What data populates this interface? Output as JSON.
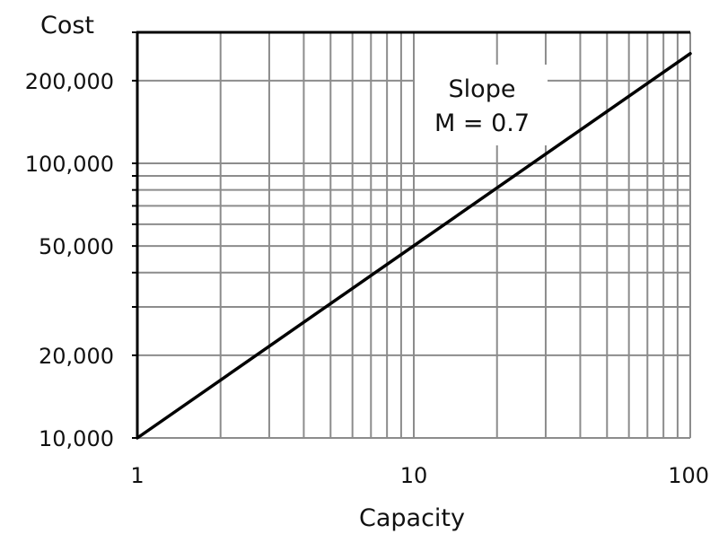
{
  "chart_data": {
    "type": "line",
    "title": "",
    "xlabel": "Capacity",
    "ylabel": "Cost",
    "x_scale": "log",
    "y_scale": "log",
    "xlim": [
      1,
      100
    ],
    "ylim": [
      10000,
      300000
    ],
    "grid": true,
    "x_ticks": [
      {
        "value": 1,
        "label": "1"
      },
      {
        "value": 10,
        "label": "10"
      },
      {
        "value": 100,
        "label": "100"
      }
    ],
    "y_ticks": [
      {
        "value": 10000,
        "label": "10,000"
      },
      {
        "value": 20000,
        "label": "20,000"
      },
      {
        "value": 50000,
        "label": "50,000"
      },
      {
        "value": 100000,
        "label": "100,000"
      },
      {
        "value": 200000,
        "label": "200,000"
      }
    ],
    "x_grid": [
      1,
      2,
      3,
      4,
      5,
      6,
      7,
      8,
      9,
      10,
      20,
      30,
      40,
      50,
      60,
      70,
      80,
      90,
      100
    ],
    "y_grid": [
      10000,
      20000,
      30000,
      40000,
      50000,
      60000,
      70000,
      80000,
      90000,
      100000,
      200000,
      300000
    ],
    "series": [
      {
        "x": [
          1,
          100
        ],
        "y": [
          10000,
          251000
        ],
        "color": "#000000"
      }
    ],
    "annotation": {
      "lines": [
        "Slope",
        "M = 0.7"
      ]
    },
    "colors": {
      "grid": "#8c8c8c",
      "frame": "#000000",
      "line": "#000000"
    }
  }
}
